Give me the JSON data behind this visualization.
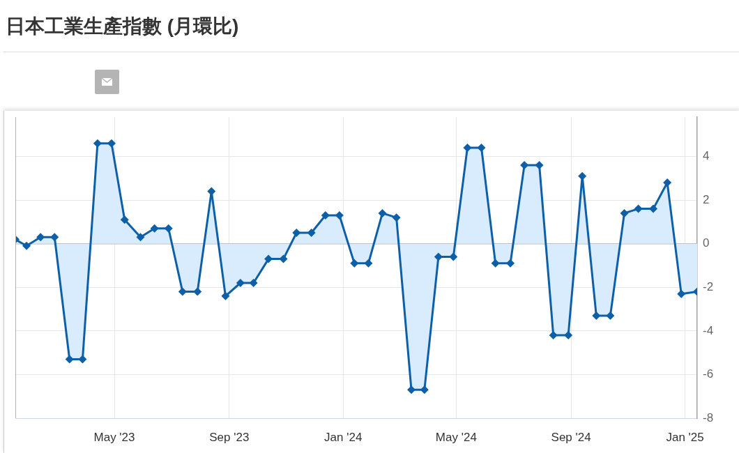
{
  "chart_data": {
    "type": "area",
    "title": "日本工業生產指數 (月環比)",
    "x": [
      "2023-01-15",
      "2023-01-27",
      "2023-02-11",
      "2023-02-26",
      "2023-03-14",
      "2023-03-28",
      "2023-04-13",
      "2023-04-28",
      "2023-05-12",
      "2023-05-29",
      "2023-06-13",
      "2023-06-28",
      "2023-07-13",
      "2023-07-29",
      "2023-08-13",
      "2023-08-28",
      "2023-09-13",
      "2023-09-27",
      "2023-10-13",
      "2023-10-29",
      "2023-11-12",
      "2023-11-28",
      "2023-12-13",
      "2023-12-28",
      "2024-01-13",
      "2024-01-28",
      "2024-02-12",
      "2024-02-27",
      "2024-03-14",
      "2024-03-28",
      "2024-04-12",
      "2024-04-28",
      "2024-05-13",
      "2024-05-28",
      "2024-06-12",
      "2024-06-28",
      "2024-07-13",
      "2024-07-29",
      "2024-08-13",
      "2024-08-29",
      "2024-09-13",
      "2024-09-28",
      "2024-10-13",
      "2024-10-28",
      "2024-11-12",
      "2024-11-28",
      "2024-12-13",
      "2024-12-28",
      "2025-01-14"
    ],
    "values": [
      0.2,
      -0.1,
      0.3,
      0.3,
      -5.3,
      -5.3,
      4.6,
      4.6,
      1.1,
      0.3,
      0.7,
      0.7,
      -2.2,
      -2.2,
      2.4,
      -2.4,
      -1.8,
      -1.8,
      -0.7,
      -0.7,
      0.5,
      0.5,
      1.3,
      1.3,
      -0.9,
      -0.9,
      1.4,
      1.2,
      -6.7,
      -6.7,
      -0.6,
      -0.6,
      4.4,
      4.4,
      -0.9,
      -0.9,
      3.6,
      3.6,
      -4.2,
      -4.2,
      3.1,
      -3.3,
      -3.3,
      1.4,
      1.6,
      1.6,
      2.8,
      -2.3,
      -2.2
    ],
    "color": "#0d5fa8",
    "xlim": [
      "2023-01-15",
      "2025-01-14"
    ],
    "xticks": [
      {
        "value": "2023-05-01",
        "label": "May '23"
      },
      {
        "value": "2023-09-01",
        "label": "Sep '23"
      },
      {
        "value": "2024-01-01",
        "label": "Jan '24"
      },
      {
        "value": "2024-05-01",
        "label": "May '24"
      },
      {
        "value": "2024-09-01",
        "label": "Sep '24"
      },
      {
        "value": "2025-01-01",
        "label": "Jan '25"
      }
    ],
    "ylim": [
      -8,
      5.8
    ],
    "yticks": [
      -8,
      -6,
      -4,
      -2,
      0,
      2,
      4
    ],
    "grid": true,
    "marker": "diamond",
    "ref_lines": [
      {
        "axis": "y",
        "value": 0,
        "color": "#b4b4b4"
      }
    ]
  }
}
